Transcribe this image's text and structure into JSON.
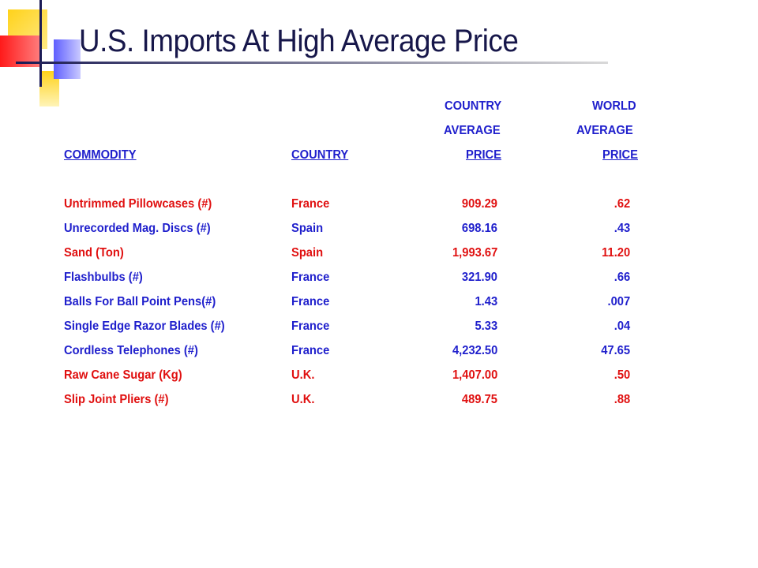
{
  "title": "U.S. Imports At High Average Price",
  "headers": {
    "commodity": "COMMODITY",
    "country": "COUNTRY",
    "country_avg_line1": "COUNTRY",
    "country_avg_line2": "AVERAGE",
    "country_avg_line3": "PRICE",
    "world_avg_line1": "WORLD",
    "world_avg_line2": "AVERAGE",
    "world_avg_line3": "PRICE"
  },
  "colors": {
    "red": "#e01010",
    "blue": "#1f1fcc",
    "title": "#17174a"
  },
  "rows": [
    {
      "commodity": "Untrimmed Pillowcases  (#)",
      "country": "France",
      "country_price": "909.29",
      "world_price": ".62",
      "color": "red"
    },
    {
      "commodity": "Unrecorded Mag. Discs (#)",
      "country": "Spain",
      "country_price": "698.16",
      "world_price": ".43",
      "color": "blue"
    },
    {
      "commodity": "Sand (Ton)",
      "country": "Spain",
      "country_price": "1,993.67",
      "world_price": "11.20",
      "color": "red"
    },
    {
      "commodity": "Flashbulbs (#)",
      "country": "France",
      "country_price": "321.90",
      "world_price": ".66",
      "color": "blue"
    },
    {
      "commodity": "Balls For Ball Point Pens(#)",
      "country": "France",
      "country_price": "1.43",
      "world_price": ".007",
      "color": "blue"
    },
    {
      "commodity": "Single Edge Razor Blades (#)",
      "country": "France",
      "country_price": "5.33",
      "world_price": ".04",
      "color": "blue"
    },
    {
      "commodity": "Cordless Telephones (#)",
      "country": "France",
      "country_price": "4,232.50",
      "world_price": "47.65",
      "color": "blue"
    },
    {
      "commodity": "Raw Cane Sugar (Kg)",
      "country": "U.K.",
      "country_price": "1,407.00",
      "world_price": ".50",
      "color": "red"
    },
    {
      "commodity": "Slip Joint Pliers (#)",
      "country": "U.K.",
      "country_price": "489.75",
      "world_price": ".88",
      "color": "red"
    }
  ]
}
